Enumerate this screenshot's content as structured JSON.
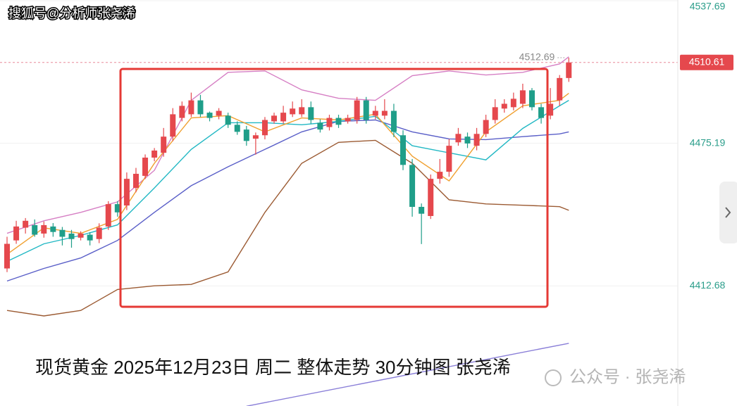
{
  "chart_data": {
    "type": "candlestick",
    "title": "现货黄金  2025年12月23日 周二 整体走势 30分钟图 张尧浠",
    "watermark": "搜狐号@分析师张尧浠",
    "footer_watermark": "公众号 · 张尧浠",
    "up_color": "#e5484d",
    "down_color": "#1f9e89",
    "open": [
      4420.3,
      4432.6,
      4438.2,
      4439.3,
      4435.6,
      4438.7,
      4437.2,
      4435.6,
      4433.8,
      4435.1,
      4433.2,
      4438.7,
      4448.5,
      4447.9,
      4455.6,
      4460.9,
      4468.9,
      4471.0,
      4478.1,
      4486.3,
      4487.9,
      4494.0,
      4488.6,
      4487.3,
      4487.3,
      4483.3,
      4481.2,
      4477.2,
      4478.7,
      4484.8,
      4484.8,
      4487.9,
      4487.9,
      4491.0,
      4484.2,
      4482.3,
      4486.3,
      4484.8,
      4485.4,
      4494.0,
      4487.3,
      4487.3,
      4489.4,
      4478.7,
      4465.7,
      4447.3,
      4443.3,
      4459.6,
      4462.7,
      4475.6,
      4478.1,
      4474.1,
      4479.3,
      4485.4,
      4490.4,
      4491.0,
      4492.5,
      4498.4,
      4491.0,
      4487.3,
      4494.0,
      4503.8
    ],
    "high": [
      4434.2,
      4441.2,
      4442.4,
      4441.8,
      4440.9,
      4440.2,
      4438.5,
      4437.2,
      4436.6,
      4436.2,
      4440.1,
      4449.8,
      4449.8,
      4462.4,
      4464.4,
      4470.3,
      4473.1,
      4481.9,
      4490.6,
      4493.5,
      4497.4,
      4496.4,
      4489.1,
      4490.6,
      4488.6,
      4484.8,
      4482.8,
      4479.9,
      4486.7,
      4488.6,
      4491.6,
      4493.5,
      4494.5,
      4493.5,
      4485.7,
      4487.7,
      4487.7,
      4487.7,
      4495.5,
      4495.5,
      4491.6,
      4494.5,
      4492.5,
      4480.9,
      4468.3,
      4448.8,
      4461.5,
      4468.3,
      4477.0,
      4481.9,
      4479.9,
      4481.9,
      4487.7,
      4494.5,
      4494.5,
      4497.4,
      4501.3,
      4499.4,
      4492.5,
      4499.4,
      4505.1,
      4512.69
    ],
    "low": [
      4418.7,
      4431.1,
      4435.6,
      4434.2,
      4433.8,
      4434.2,
      4430.4,
      4429.4,
      4432.6,
      4430.4,
      4431.4,
      4437.2,
      4443.0,
      4445.9,
      4453.7,
      4459.5,
      4467.3,
      4469.3,
      4476.1,
      4484.8,
      4486.7,
      4486.7,
      4484.8,
      4485.7,
      4481.9,
      4478.9,
      4474.1,
      4470.2,
      4476.9,
      4483.8,
      4483.8,
      4486.7,
      4486.7,
      4483.8,
      4479.9,
      4480.8,
      4481.9,
      4483.8,
      4483.8,
      4483.8,
      4485.7,
      4485.7,
      4477.9,
      4463.4,
      4443.0,
      4431.0,
      4442.0,
      4457.5,
      4460.5,
      4474.1,
      4473.1,
      4472.1,
      4477.9,
      4483.8,
      4488.6,
      4489.6,
      4490.6,
      4489.6,
      4483.8,
      4485.7,
      4491.6,
      4502.1
    ],
    "close": [
      4431.1,
      4438.7,
      4441.2,
      4435.1,
      4439.3,
      4436.3,
      4434.2,
      4433.2,
      4435.6,
      4432.6,
      4438.2,
      4448.5,
      4444.9,
      4459.6,
      4461.8,
      4468.9,
      4472.0,
      4478.1,
      4487.9,
      4491.6,
      4494.0,
      4487.9,
      4486.3,
      4489.4,
      4483.3,
      4480.2,
      4476.2,
      4478.7,
      4485.4,
      4487.3,
      4488.6,
      4490.4,
      4491.0,
      4485.4,
      4481.2,
      4486.3,
      4483.3,
      4486.3,
      4494.0,
      4485.4,
      4489.4,
      4489.4,
      4480.2,
      4465.7,
      4447.3,
      4444.3,
      4459.6,
      4462.7,
      4474.1,
      4479.3,
      4475.1,
      4479.3,
      4485.4,
      4491.0,
      4492.5,
      4494.7,
      4498.4,
      4491.0,
      4486.3,
      4492.5,
      4503.8,
      4510.61
    ],
    "lines": [
      {
        "color": "#d67fc4",
        "x": [
          0,
          4,
          8,
          12,
          16,
          20,
          24,
          28,
          32,
          36,
          40,
          44,
          48,
          52,
          56,
          60,
          61
        ],
        "values": [
          4435.7,
          4441.2,
          4444.9,
          4449.5,
          4463.3,
          4494.0,
          4506.3,
          4506.9,
          4498.6,
          4494.9,
          4494.0,
          4504.8,
          4506.9,
          4505.1,
          4506.3,
          4510.0,
          4513.1
        ]
      },
      {
        "color": "#9b5a32",
        "x": [
          0,
          4,
          8,
          12,
          16,
          20,
          24,
          28,
          32,
          36,
          40,
          44,
          48,
          52,
          56,
          60,
          61
        ],
        "values": [
          4401.9,
          4399.5,
          4401.9,
          4411.1,
          4412.7,
          4413.3,
          4418.8,
          4444.9,
          4466.4,
          4475.6,
          4476.5,
          4466.4,
          4450.4,
          4448.6,
          4448.0,
          4447.4,
          4445.8
        ]
      },
      {
        "color": "#5a5fc8",
        "x": [
          0,
          4,
          8,
          12,
          16,
          20,
          24,
          28,
          32,
          36,
          40,
          44,
          48,
          52,
          56,
          60,
          61
        ],
        "values": [
          4414.8,
          4420.3,
          4424.9,
          4432.6,
          4444.9,
          4456.6,
          4464.9,
          4472.5,
          4480.2,
          4484.8,
          4485.4,
          4480.2,
          4477.1,
          4476.8,
          4478.1,
          4479.3,
          4480.2
        ]
      },
      {
        "color": "#22b8c4",
        "x": [
          0,
          4,
          8,
          12,
          16,
          20,
          24,
          28,
          32,
          36,
          40,
          44,
          48,
          52,
          56,
          60,
          61
        ],
        "values": [
          4423.4,
          4431.1,
          4434.8,
          4439.4,
          4455.6,
          4472.5,
          4484.2,
          4484.2,
          4483.3,
          4484.8,
          4487.0,
          4474.1,
          4471.0,
          4467.9,
          4481.7,
          4491.6,
          4494.0
        ]
      },
      {
        "color": "#f0a030",
        "x": [
          0,
          4,
          8,
          12,
          16,
          20,
          24,
          28,
          32,
          36,
          40,
          44,
          48,
          52,
          56,
          60,
          61
        ],
        "values": [
          4426.5,
          4438.1,
          4435.7,
          4441.8,
          4466.4,
          4486.3,
          4487.3,
          4480.2,
          4486.3,
          4485.4,
          4487.9,
          4469.5,
          4458.7,
          4480.2,
          4491.6,
          4494.0,
          4497.1
        ]
      },
      {
        "color": "#8a7fd8",
        "x": [
          26,
          61
        ],
        "values": [
          4359.9,
          4387.5
        ]
      }
    ],
    "ylim": [
      4360,
      4538
    ],
    "yticks": [
      4537.69,
      4475.19,
      4412.68
    ],
    "ytick_color": "#2a9d8a",
    "grid": true,
    "last_price": 4510.61,
    "high_label": 4512.69
  }
}
